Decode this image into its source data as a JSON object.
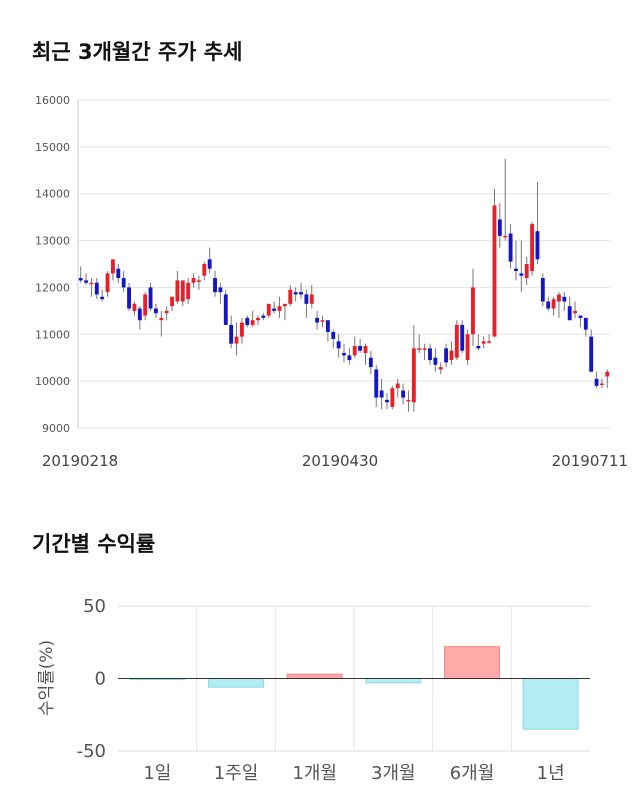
{
  "titles": {
    "price_trend": "최근 3개월간 주가 추세",
    "period_returns": "기간별 수익률"
  },
  "chart_data": [
    {
      "type": "candlestick",
      "yticks": [
        9000,
        10000,
        11000,
        12000,
        13000,
        14000,
        15000,
        16000
      ],
      "ylim": [
        9000,
        16000
      ],
      "xlabels": [
        "20190218",
        "20190430",
        "20190711"
      ],
      "grid": true,
      "colors": {
        "up": "#e8202a",
        "down": "#1515c8",
        "wick": "#777777",
        "grid": "#e3e3e3"
      },
      "candles": [
        [
          12200,
          12450,
          12100,
          12150
        ],
        [
          12150,
          12300,
          12050,
          12100
        ],
        [
          12100,
          12200,
          11800,
          12100
        ],
        [
          12100,
          12200,
          11750,
          11850
        ],
        [
          11800,
          11950,
          11700,
          11750
        ],
        [
          11900,
          12350,
          11800,
          12300
        ],
        [
          12300,
          12600,
          12150,
          12600
        ],
        [
          12400,
          12500,
          12100,
          12200
        ],
        [
          12200,
          12350,
          11900,
          12000
        ],
        [
          12000,
          12100,
          11500,
          11550
        ],
        [
          11500,
          11700,
          11400,
          11650
        ],
        [
          11550,
          11600,
          11100,
          11300
        ],
        [
          11400,
          11900,
          11300,
          11850
        ],
        [
          12000,
          12100,
          11500,
          11550
        ],
        [
          11550,
          11650,
          11350,
          11450
        ],
        [
          11300,
          11500,
          10950,
          11350
        ],
        [
          11450,
          11600,
          11300,
          11500
        ],
        [
          11600,
          11800,
          11500,
          11800
        ],
        [
          11700,
          12350,
          11650,
          12150
        ],
        [
          11700,
          12150,
          11600,
          12150
        ],
        [
          11750,
          12200,
          11650,
          12100
        ],
        [
          12100,
          12300,
          12000,
          12200
        ],
        [
          12150,
          12250,
          11950,
          12150
        ],
        [
          12250,
          12550,
          12150,
          12500
        ],
        [
          12600,
          12850,
          12300,
          12400
        ],
        [
          12200,
          12350,
          11800,
          11900
        ],
        [
          12000,
          12100,
          11650,
          11900
        ],
        [
          11850,
          11950,
          11200,
          11200
        ],
        [
          11200,
          11400,
          10700,
          10800
        ],
        [
          10800,
          11250,
          10550,
          10950
        ],
        [
          10950,
          11350,
          10800,
          11250
        ],
        [
          11350,
          11400,
          11150,
          11200
        ],
        [
          11200,
          11500,
          11150,
          11300
        ],
        [
          11300,
          11400,
          11200,
          11350
        ],
        [
          11400,
          11450,
          11300,
          11350
        ],
        [
          11400,
          11600,
          11350,
          11650
        ],
        [
          11550,
          11700,
          11450,
          11500
        ],
        [
          11500,
          11800,
          11350,
          11600
        ],
        [
          11600,
          11650,
          11300,
          11650
        ],
        [
          11650,
          12050,
          11600,
          11950
        ],
        [
          11900,
          12000,
          11700,
          11850
        ],
        [
          11900,
          12100,
          11750,
          11850
        ],
        [
          11850,
          11950,
          11350,
          11650
        ],
        [
          11650,
          12050,
          11550,
          11850
        ],
        [
          11350,
          11500,
          11100,
          11250
        ],
        [
          11300,
          11400,
          11150,
          11300
        ],
        [
          11300,
          11300,
          10850,
          11050
        ],
        [
          11050,
          11100,
          10700,
          10900
        ],
        [
          10850,
          11000,
          10500,
          10700
        ],
        [
          10600,
          10800,
          10400,
          10550
        ],
        [
          10550,
          10700,
          10350,
          10450
        ],
        [
          10550,
          10950,
          10500,
          10750
        ],
        [
          10750,
          10900,
          10600,
          10650
        ],
        [
          10600,
          10800,
          10350,
          10750
        ],
        [
          10500,
          10650,
          10150,
          10300
        ],
        [
          10250,
          10350,
          9450,
          9650
        ],
        [
          9800,
          10050,
          9400,
          9650
        ],
        [
          9600,
          9750,
          9400,
          9550
        ],
        [
          9450,
          9900,
          9400,
          9850
        ],
        [
          9850,
          10050,
          9650,
          9950
        ],
        [
          9800,
          9950,
          9500,
          9650
        ],
        [
          9600,
          9800,
          9350,
          9600
        ],
        [
          9550,
          11200,
          9350,
          10700
        ],
        [
          10700,
          11000,
          10600,
          10700
        ],
        [
          10700,
          10800,
          10450,
          10700
        ],
        [
          10700,
          10800,
          10350,
          10450
        ],
        [
          10500,
          10700,
          10200,
          10350
        ],
        [
          10250,
          10400,
          10150,
          10300
        ],
        [
          10700,
          10800,
          10300,
          10400
        ],
        [
          10450,
          10850,
          10350,
          10650
        ],
        [
          10500,
          11300,
          10450,
          11200
        ],
        [
          11200,
          11300,
          10600,
          10650
        ],
        [
          10450,
          11100,
          10350,
          11000
        ],
        [
          11000,
          12400,
          10750,
          12000
        ],
        [
          10750,
          11000,
          10650,
          10700
        ],
        [
          10800,
          10950,
          10700,
          10850
        ],
        [
          10850,
          11000,
          10800,
          10850
        ],
        [
          10950,
          14100,
          10950,
          13750
        ],
        [
          13450,
          13800,
          12850,
          13100
        ],
        [
          13100,
          14750,
          13000,
          13100
        ],
        [
          13150,
          13350,
          12400,
          12550
        ],
        [
          12400,
          13000,
          12150,
          12350
        ],
        [
          12300,
          13000,
          11900,
          12250
        ],
        [
          12200,
          12650,
          12050,
          12500
        ],
        [
          12350,
          13400,
          12250,
          13350
        ],
        [
          13200,
          14250,
          12500,
          12600
        ],
        [
          12200,
          12300,
          11600,
          11700
        ],
        [
          11700,
          11800,
          11500,
          11550
        ],
        [
          11550,
          11800,
          11400,
          11750
        ],
        [
          11700,
          11900,
          11350,
          11850
        ],
        [
          11800,
          11900,
          11500,
          11700
        ],
        [
          11600,
          11800,
          11350,
          11300
        ],
        [
          11450,
          11700,
          11350,
          11500
        ],
        [
          11400,
          11400,
          11150,
          11350
        ],
        [
          11350,
          11350,
          10950,
          11100
        ],
        [
          10950,
          11100,
          10250,
          10200
        ],
        [
          10050,
          10200,
          9850,
          9900
        ],
        [
          9950,
          10050,
          9850,
          9950
        ],
        [
          10100,
          10250,
          9850,
          10200
        ]
      ]
    },
    {
      "type": "bar",
      "categories": [
        "1일",
        "1주일",
        "1개월",
        "3개월",
        "6개월",
        "1년"
      ],
      "values": [
        -0.5,
        -6,
        3,
        -3,
        22,
        -35
      ],
      "ylim": [
        -50,
        50
      ],
      "yticks": [
        50,
        0,
        -50
      ],
      "ylabel": "수익률(%)",
      "colors": {
        "positive_fill": "#ffa9a9",
        "positive_edge": "#f08a8a",
        "negative_fill": "#b3ecf5",
        "negative_edge": "#8fd8e6",
        "grid": "#dddddd"
      }
    }
  ]
}
